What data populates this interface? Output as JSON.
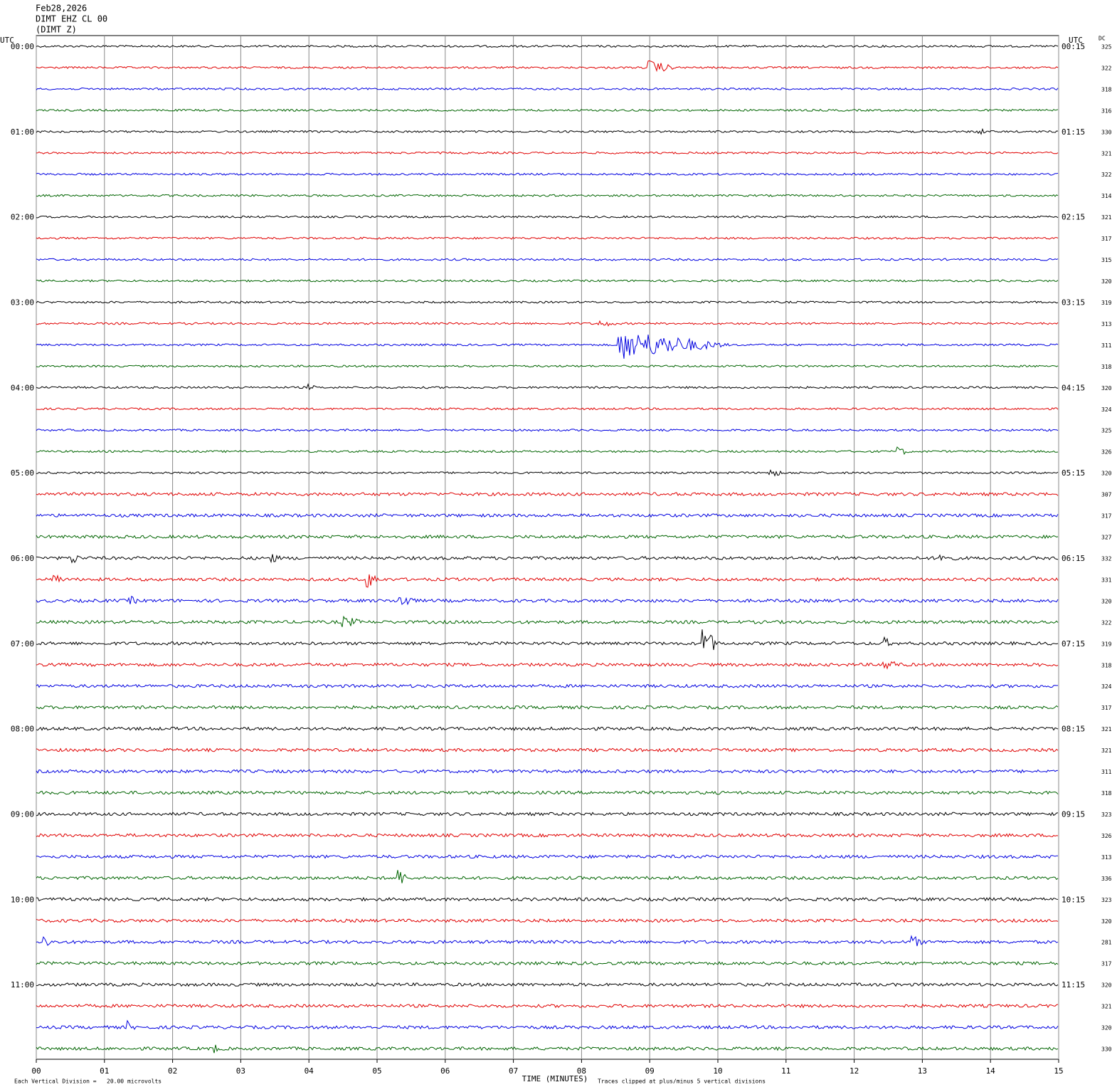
{
  "header": {
    "lines": [
      "Feb28,2026",
      "DIMT EHZ CL 00",
      "(DIMT Z)"
    ],
    "left_unit": "UTC",
    "right_unit": "UTC",
    "dc_label": "DC"
  },
  "left_times": [
    "00:00",
    "01:00",
    "02:00",
    "03:00",
    "04:00",
    "05:00",
    "06:00",
    "07:00",
    "08:00",
    "09:00",
    "10:00",
    "11:00"
  ],
  "right_times": [
    "00:15",
    "01:15",
    "02:15",
    "03:15",
    "04:15",
    "05:15",
    "06:15",
    "07:15",
    "08:15",
    "09:15",
    "10:15",
    "11:15"
  ],
  "dc_values": [
    325,
    322,
    318,
    316,
    330,
    321,
    322,
    314,
    321,
    317,
    315,
    320,
    319,
    313,
    311,
    318,
    320,
    324,
    325,
    326,
    320,
    307,
    317,
    327,
    332,
    331,
    320,
    322,
    319,
    318,
    324,
    317,
    321,
    321,
    311,
    318,
    323,
    326,
    313,
    336,
    323,
    320,
    281,
    317,
    320,
    321,
    320,
    330
  ],
  "x_axis": {
    "ticks": [
      "00",
      "01",
      "02",
      "03",
      "04",
      "05",
      "06",
      "07",
      "08",
      "09",
      "10",
      "11",
      "12",
      "13",
      "14",
      "15"
    ],
    "label": "TIME (MINUTES)"
  },
  "footer": {
    "scale_note": "Each Vertical Division =   20.00 microvolts",
    "clip_note": "Traces clipped at plus/minus 5 vertical divisions"
  }
}
